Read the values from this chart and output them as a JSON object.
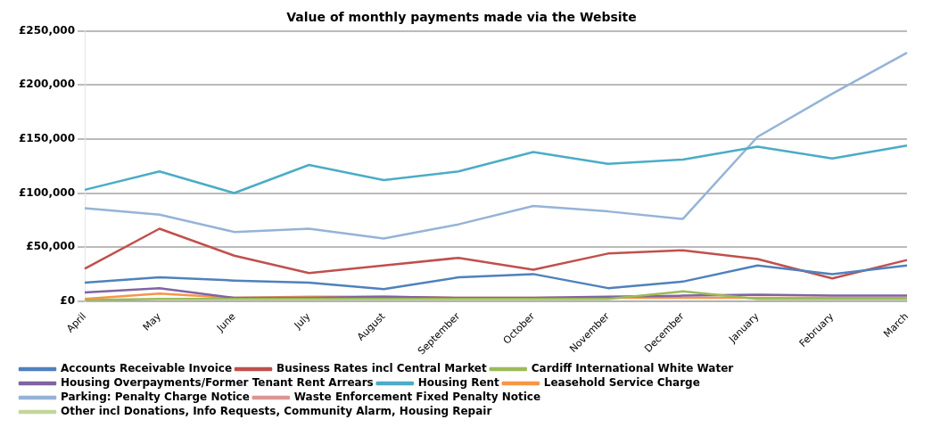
{
  "chart_data": {
    "type": "line",
    "title": "Value of monthly payments made via the Website",
    "categories": [
      "April",
      "May",
      "June",
      "July",
      "August",
      "September",
      "October",
      "November",
      "December",
      "January",
      "February",
      "March"
    ],
    "series": [
      {
        "name": "Accounts Receivable Invoice",
        "color": "#4f81bd",
        "values": [
          17000,
          22000,
          19000,
          17000,
          11000,
          22000,
          25000,
          12000,
          18000,
          33000,
          25000,
          33000
        ]
      },
      {
        "name": "Business Rates incl Central Market",
        "color": "#c0504d",
        "values": [
          30000,
          67000,
          42000,
          26000,
          33000,
          40000,
          29000,
          44000,
          47000,
          39000,
          21000,
          38000
        ]
      },
      {
        "name": "Cardiff International White Water",
        "color": "#9bbb59",
        "values": [
          1000,
          2000,
          2000,
          2000,
          2000,
          2000,
          2000,
          2000,
          9000,
          2000,
          2000,
          2000
        ]
      },
      {
        "name": "Housing Overpayments/Former Tenant Rent Arrears",
        "color": "#8064a2",
        "values": [
          8000,
          12000,
          3000,
          3000,
          4000,
          3000,
          3000,
          4000,
          5000,
          6000,
          5000,
          5000
        ]
      },
      {
        "name": "Housing Rent",
        "color": "#4bacc6",
        "values": [
          103000,
          120000,
          100000,
          126000,
          112000,
          120000,
          138000,
          127000,
          131000,
          143000,
          132000,
          144000
        ]
      },
      {
        "name": "Leasehold Service Charge",
        "color": "#f79646",
        "values": [
          2000,
          7000,
          3000,
          4000,
          4000,
          3000,
          3000,
          3000,
          3000,
          3000,
          3000,
          3000
        ]
      },
      {
        "name": "Parking: Penalty Charge Notice",
        "color": "#95b3d7",
        "values": [
          86000,
          80000,
          64000,
          67000,
          58000,
          71000,
          88000,
          83000,
          76000,
          152000,
          192000,
          230000
        ]
      },
      {
        "name": "Waste Enforcement Fixed Penalty Notice",
        "color": "#d99694",
        "values": [
          null,
          null,
          null,
          null,
          null,
          null,
          null,
          null,
          null,
          null,
          null,
          null
        ]
      },
      {
        "name": "Other incl Donations, Info Requests, Community Alarm, Housing Repair",
        "color": "#c3d69b",
        "values": [
          null,
          null,
          null,
          null,
          null,
          null,
          null,
          null,
          null,
          null,
          null,
          null
        ]
      }
    ],
    "ylim": [
      0,
      250000
    ],
    "yticks": [
      {
        "value": 0,
        "label": "£0"
      },
      {
        "value": 50000,
        "label": "£50,000"
      },
      {
        "value": 100000,
        "label": "£100,000"
      },
      {
        "value": 150000,
        "label": "£150,000"
      },
      {
        "value": 200000,
        "label": "£200,000"
      },
      {
        "value": 250000,
        "label": "£250,000"
      }
    ],
    "grid": "y",
    "legend": "bottom",
    "marker": "none",
    "line_style": "solid"
  }
}
